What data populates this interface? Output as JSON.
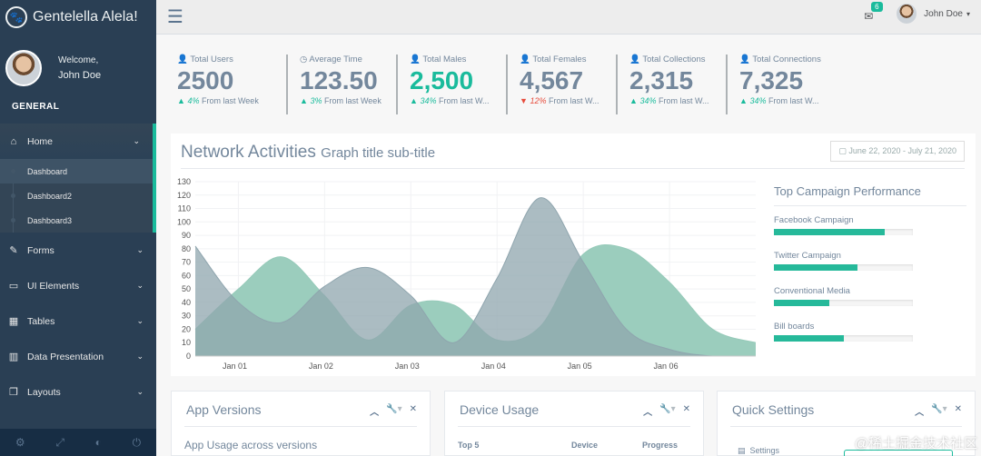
{
  "brand": {
    "name": "Gentelella Alela!",
    "icon": "paw-icon"
  },
  "profile": {
    "welcome": "Welcome,",
    "name": "John Doe"
  },
  "sidebar": {
    "section": "GENERAL",
    "home": {
      "label": "Home",
      "icon": "home-icon"
    },
    "home_sub": [
      "Dashboard",
      "Dashboard2",
      "Dashboard3"
    ],
    "items": [
      {
        "label": "Forms",
        "icon": "edit-icon"
      },
      {
        "label": "UI Elements",
        "icon": "desktop-icon"
      },
      {
        "label": "Tables",
        "icon": "table-icon"
      },
      {
        "label": "Data Presentation",
        "icon": "bar-chart-icon"
      },
      {
        "label": "Layouts",
        "icon": "clone-icon"
      }
    ]
  },
  "topnav": {
    "mail_count": "6",
    "user": "John Doe"
  },
  "stats": [
    {
      "label": "Total Users",
      "icon": "user-icon",
      "value": "2500",
      "change": "4%",
      "change_dir": "up",
      "suffix": "From last Week",
      "green": false
    },
    {
      "label": "Average Time",
      "icon": "clock-icon",
      "value": "123.50",
      "change": "3%",
      "change_dir": "up",
      "suffix": "From last Week",
      "green": false
    },
    {
      "label": "Total Males",
      "icon": "user-icon",
      "value": "2,500",
      "change": "34%",
      "change_dir": "up",
      "suffix": "From last W...",
      "green": true
    },
    {
      "label": "Total Females",
      "icon": "user-icon",
      "value": "4,567",
      "change": "12%",
      "change_dir": "down",
      "suffix": "From last W...",
      "green": false
    },
    {
      "label": "Total Collections",
      "icon": "user-icon",
      "value": "2,315",
      "change": "34%",
      "change_dir": "up",
      "suffix": "From last W...",
      "green": false
    },
    {
      "label": "Total Connections",
      "icon": "user-icon",
      "value": "7,325",
      "change": "34%",
      "change_dir": "up",
      "suffix": "From last W...",
      "green": false
    }
  ],
  "network": {
    "title": "Network Activities",
    "subtitle": "Graph title sub-title",
    "date_range": "June 22, 2020 - July 21, 2020"
  },
  "chart_data": {
    "type": "area",
    "x": [
      0,
      0.5,
      1,
      1.5,
      2,
      2.5,
      3,
      3.5,
      4,
      4.5,
      5,
      5.5,
      6,
      6.5
    ],
    "x_ticks": [
      "Jan 01",
      "Jan 02",
      "Jan 03",
      "Jan 04",
      "Jan 05",
      "Jan 06"
    ],
    "ylim": [
      0,
      130
    ],
    "y_ticks": [
      0,
      10,
      20,
      30,
      40,
      50,
      60,
      70,
      80,
      90,
      100,
      110,
      120,
      130
    ],
    "grid": true,
    "series": [
      {
        "color": "#96CAB9",
        "values": [
          20,
          50,
          74,
          45,
          12,
          38,
          38,
          12,
          22,
          76,
          80,
          55,
          20,
          10
        ]
      },
      {
        "color": "#8FA5AE",
        "values": [
          82,
          40,
          25,
          52,
          66,
          45,
          10,
          58,
          118,
          70,
          20,
          5,
          0,
          0
        ]
      }
    ],
    "colors": {
      "mint": "#96CAB9",
      "slate": "#8FA5AE",
      "overlap": "#73A8A0"
    }
  },
  "campaign": {
    "title": "Top Campaign Performance",
    "items": [
      {
        "label": "Facebook Campaign",
        "value": 0.8
      },
      {
        "label": "Twitter Campaign",
        "value": 0.6
      },
      {
        "label": "Conventional Media",
        "value": 0.4
      },
      {
        "label": "Bill boards",
        "value": 0.5
      }
    ]
  },
  "panels": {
    "app_versions": {
      "title": "App Versions",
      "sub": "App Usage across versions"
    },
    "device_usage": {
      "title": "Device Usage",
      "col1": "Top 5",
      "col2": "Device",
      "col3": "Progress"
    },
    "quick_settings": {
      "title": "Quick Settings",
      "item": "Settings"
    }
  },
  "watermark": "@稀土掘金技术社区",
  "accent": "#1ABB9C",
  "sidebar_color": "#2A3F54"
}
